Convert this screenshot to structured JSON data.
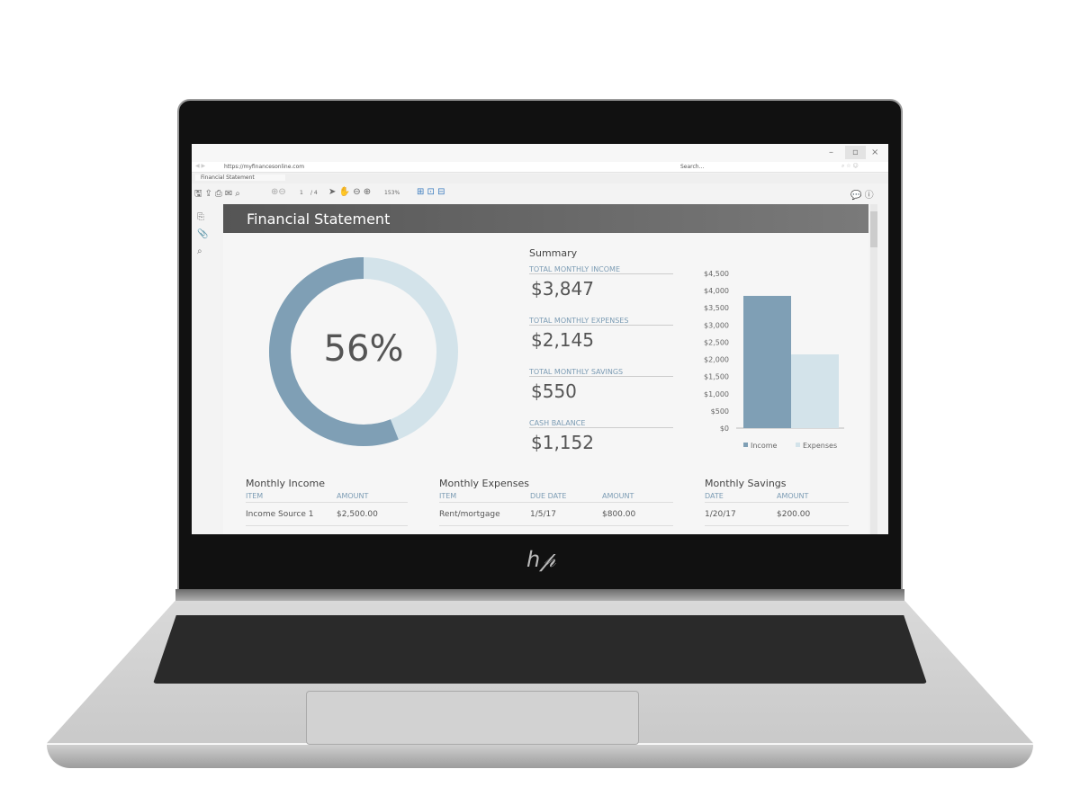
{
  "browser": {
    "url": "https://myfinancesonline.com",
    "search_placeholder": "Search...",
    "tab_title": "Financial Statement"
  },
  "pdf_toolbar": {
    "page_current": "1",
    "page_total": "/ 4",
    "zoom": "153%"
  },
  "report": {
    "title": "Financial Statement",
    "donut_percent": "56%",
    "donut_value": 56,
    "summary": {
      "heading": "Summary",
      "items": [
        {
          "label": "TOTAL MONTHLY INCOME",
          "value": "$3,847"
        },
        {
          "label": "TOTAL MONTHLY EXPENSES",
          "value": "$2,145"
        },
        {
          "label": "TOTAL MONTHLY SAVINGS",
          "value": "$550"
        },
        {
          "label": "CASH BALANCE",
          "value": "$1,152"
        }
      ]
    },
    "income": {
      "title": "Monthly Income",
      "headers": [
        "ITEM",
        "AMOUNT"
      ],
      "rows": [
        [
          "Income Source 1",
          "$2,500.00"
        ]
      ]
    },
    "expenses": {
      "title": "Monthly Expenses",
      "headers": [
        "ITEM",
        "DUE DATE",
        "AMOUNT"
      ],
      "rows": [
        [
          "Rent/mortgage",
          "1/5/17",
          "$800.00"
        ]
      ]
    },
    "savings": {
      "title": "Monthly Savings",
      "headers": [
        "DATE",
        "AMOUNT"
      ],
      "rows": [
        [
          "1/20/17",
          "$200.00"
        ]
      ]
    }
  },
  "colors": {
    "income": "#7f9fb5",
    "expenses": "#d3e3ea"
  },
  "chart_data": {
    "type": "bar",
    "categories": [
      "Income",
      "Expenses"
    ],
    "values": [
      3847,
      2145
    ],
    "ylim": [
      0,
      4500
    ],
    "yticks": [
      "$0",
      "$500",
      "$1,000",
      "$1,500",
      "$2,000",
      "$2,500",
      "$3,000",
      "$3,500",
      "$4,000",
      "$4,500"
    ],
    "legend": [
      "Income",
      "Expenses"
    ],
    "legend_position": "bottom"
  },
  "brand": "hp"
}
